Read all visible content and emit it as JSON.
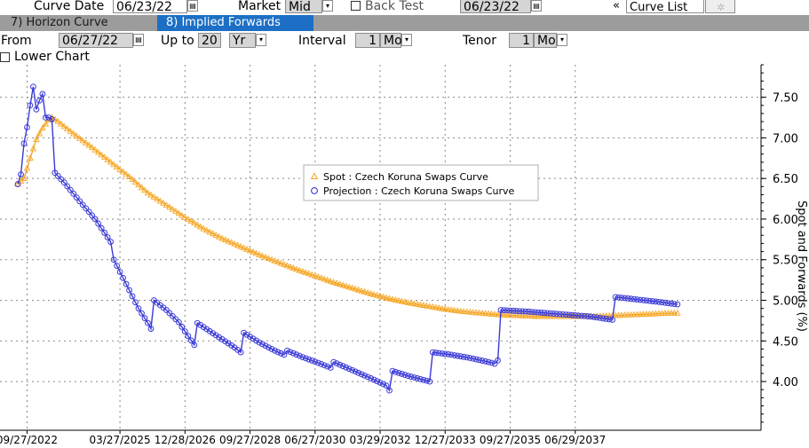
{
  "toolbar": {
    "curve_date_label": "Curve Date",
    "curve_date": "06/23/22",
    "market_label": "Market",
    "market_value": "Mid",
    "back_test_label": "Back Test",
    "back_test_date": "06/23/22",
    "nav_arrows": "«",
    "curve_list_label": "Curve List"
  },
  "tabs": [
    {
      "label": "7)  Horizon Curve"
    },
    {
      "label": "8)  Implied Forwards"
    }
  ],
  "params": {
    "from_label": "From",
    "from_date": "06/27/22",
    "up_to_label": "Up to",
    "up_to_value": "20",
    "up_to_unit": "Yr",
    "interval_label": "Interval",
    "interval_value": "1",
    "interval_unit": "Mo",
    "tenor_label": "Tenor",
    "tenor_value": "1",
    "tenor_unit": "Mo",
    "lower_chart_label": "Lower Chart"
  },
  "colors": {
    "spot": "#f5a623",
    "projection": "#3a3ad6",
    "tab_active": "#1d6fc5",
    "tab_bar": "#9c9c9c"
  },
  "chart_data": {
    "type": "line",
    "ylabel": "Spot and Forwards (%)",
    "ylim": [
      3.4,
      7.9
    ],
    "yticks": [
      4.0,
      4.5,
      5.0,
      5.5,
      6.0,
      6.5,
      7.0,
      7.5
    ],
    "ytick_labels": [
      "4.00",
      "4.50",
      "5.00",
      "5.50",
      "6.00",
      "6.50",
      "7.00",
      "7.50"
    ],
    "xtick_labels": [
      "09/27/2022",
      "03/27/2025",
      "12/28/2026",
      "09/27/2028",
      "06/27/2030",
      "03/29/2032",
      "12/27/2033",
      "09/27/2035",
      "06/29/2037"
    ],
    "x_unit": "months from 06/27/22",
    "xlim": [
      0,
      240
    ],
    "xticks": [
      3,
      33,
      54,
      75,
      96,
      117,
      138,
      159,
      180
    ],
    "grid": true,
    "legend_position": "center-right",
    "series": [
      {
        "name": "Spot : Czech Koruna Swaps Curve",
        "marker": "triangle",
        "points": [
          [
            0,
            6.43
          ],
          [
            2,
            6.5
          ],
          [
            4,
            6.75
          ],
          [
            6,
            6.98
          ],
          [
            8,
            7.12
          ],
          [
            10,
            7.22
          ],
          [
            11,
            7.25
          ],
          [
            13,
            7.2
          ],
          [
            18,
            7.05
          ],
          [
            24,
            6.88
          ],
          [
            30,
            6.7
          ],
          [
            36,
            6.52
          ],
          [
            42,
            6.32
          ],
          [
            48,
            6.17
          ],
          [
            54,
            6.02
          ],
          [
            60,
            5.88
          ],
          [
            66,
            5.76
          ],
          [
            72,
            5.66
          ],
          [
            78,
            5.56
          ],
          [
            84,
            5.47
          ],
          [
            90,
            5.38
          ],
          [
            96,
            5.3
          ],
          [
            102,
            5.22
          ],
          [
            108,
            5.15
          ],
          [
            114,
            5.08
          ],
          [
            120,
            5.02
          ],
          [
            126,
            4.97
          ],
          [
            132,
            4.93
          ],
          [
            138,
            4.89
          ],
          [
            144,
            4.86
          ],
          [
            150,
            4.84
          ],
          [
            156,
            4.82
          ],
          [
            162,
            4.81
          ],
          [
            168,
            4.8
          ],
          [
            174,
            4.8
          ],
          [
            180,
            4.8
          ],
          [
            186,
            4.8
          ],
          [
            192,
            4.81
          ],
          [
            198,
            4.82
          ],
          [
            204,
            4.83
          ],
          [
            210,
            4.84
          ],
          [
            213,
            4.84
          ]
        ]
      },
      {
        "name": "Projection : Czech Koruna Swaps Curve",
        "marker": "circle",
        "points": [
          [
            0,
            6.43
          ],
          [
            1,
            6.55
          ],
          [
            2,
            6.93
          ],
          [
            3,
            7.13
          ],
          [
            4,
            7.4
          ],
          [
            5,
            7.63
          ],
          [
            6,
            7.35
          ],
          [
            7,
            7.46
          ],
          [
            8,
            7.54
          ],
          [
            9,
            7.25
          ],
          [
            10,
            7.25
          ],
          [
            11,
            7.23
          ],
          [
            12,
            6.57
          ],
          [
            15,
            6.45
          ],
          [
            20,
            6.22
          ],
          [
            25,
            6.0
          ],
          [
            30,
            5.72
          ],
          [
            31,
            5.5
          ],
          [
            35,
            5.2
          ],
          [
            39,
            4.9
          ],
          [
            42,
            4.72
          ],
          [
            43,
            4.65
          ],
          [
            44,
            5.0
          ],
          [
            48,
            4.88
          ],
          [
            52,
            4.73
          ],
          [
            55,
            4.56
          ],
          [
            57,
            4.45
          ],
          [
            58,
            4.72
          ],
          [
            62,
            4.62
          ],
          [
            66,
            4.52
          ],
          [
            70,
            4.42
          ],
          [
            72,
            4.36
          ],
          [
            73,
            4.6
          ],
          [
            78,
            4.48
          ],
          [
            83,
            4.38
          ],
          [
            86,
            4.33
          ],
          [
            87,
            4.38
          ],
          [
            92,
            4.3
          ],
          [
            97,
            4.23
          ],
          [
            101,
            4.17
          ],
          [
            102,
            4.24
          ],
          [
            108,
            4.14
          ],
          [
            114,
            4.04
          ],
          [
            119,
            3.95
          ],
          [
            120,
            3.89
          ],
          [
            121,
            4.13
          ],
          [
            126,
            4.07
          ],
          [
            131,
            4.02
          ],
          [
            133,
            4.0
          ],
          [
            134,
            4.36
          ],
          [
            140,
            4.33
          ],
          [
            146,
            4.29
          ],
          [
            152,
            4.24
          ],
          [
            154,
            4.22
          ],
          [
            155,
            4.26
          ],
          [
            156,
            4.88
          ],
          [
            165,
            4.86
          ],
          [
            175,
            4.83
          ],
          [
            185,
            4.8
          ],
          [
            192,
            4.76
          ],
          [
            193,
            5.04
          ],
          [
            200,
            5.01
          ],
          [
            207,
            4.98
          ],
          [
            213,
            4.95
          ]
        ]
      }
    ]
  }
}
